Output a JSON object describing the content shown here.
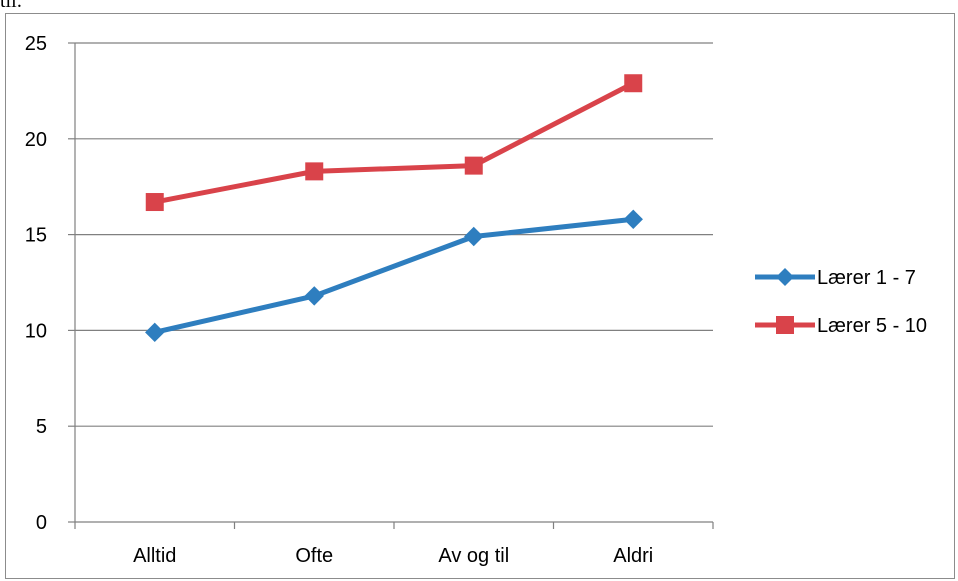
{
  "page_fragment": "til:",
  "colors": {
    "series1": "#2e7ebf",
    "series2": "#d9434a",
    "grid": "#808080",
    "axis": "#808080"
  },
  "chart_data": {
    "type": "line",
    "categories": [
      "Alltid",
      "Ofte",
      "Av og til",
      "Aldri"
    ],
    "series": [
      {
        "name": "Lærer 1 - 7",
        "values": [
          9.9,
          11.8,
          14.9,
          15.8
        ],
        "marker": "diamond",
        "color": "#2e7ebf"
      },
      {
        "name": "Lærer 5 - 10",
        "values": [
          16.7,
          18.3,
          18.6,
          22.9
        ],
        "marker": "square",
        "color": "#d9434a"
      }
    ],
    "ylim": [
      0,
      25
    ],
    "yticks": [
      0,
      5,
      10,
      15,
      20,
      25
    ],
    "grid": true,
    "legend": "right",
    "title": "",
    "xlabel": "",
    "ylabel": ""
  }
}
